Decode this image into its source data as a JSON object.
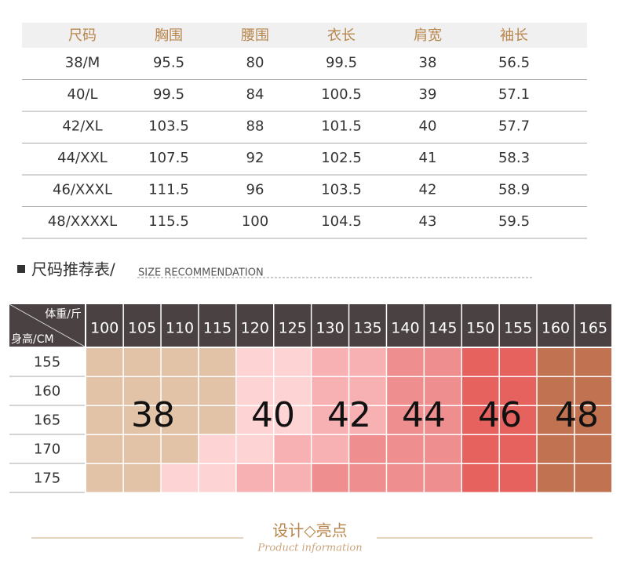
{
  "size_table": {
    "header": [
      "尺码",
      "胸围",
      "腰围",
      "衣长",
      "肩宽",
      "袖长"
    ],
    "rows": [
      [
        "38/M",
        "95.5",
        "80",
        "99.5",
        "38",
        "56.5"
      ],
      [
        "40/L",
        "99.5",
        "84",
        "100.5",
        "39",
        "57.1"
      ],
      [
        "42/XL",
        "103.5",
        "88",
        "101.5",
        "40",
        "57.7"
      ],
      [
        "44/XXL",
        "107.5",
        "92",
        "102.5",
        "41",
        "58.3"
      ],
      [
        "46/XXXL",
        "111.5",
        "96",
        "103.5",
        "42",
        "58.9"
      ],
      [
        "48/XXXXL",
        "115.5",
        "100",
        "104.5",
        "43",
        "59.5"
      ]
    ]
  },
  "recommendation": {
    "title": "尺码推荐表/",
    "subtitle": "SIZE RECOMMENDATION",
    "weight_label": "体重/斤",
    "height_label": "身高/CM",
    "weights": [
      "100",
      "105",
      "110",
      "115",
      "120",
      "125",
      "130",
      "135",
      "140",
      "145",
      "150",
      "155",
      "160",
      "165"
    ],
    "zones": [
      {
        "label": "38",
        "color": "#e3c3a8"
      },
      {
        "label": "40",
        "color": "#fdd3d4"
      },
      {
        "label": "42",
        "color": "#f8b1b3"
      },
      {
        "label": "44",
        "color": "#ee8e8e"
      },
      {
        "label": "46",
        "color": "#e5625f"
      },
      {
        "label": "48",
        "color": "#c07251"
      }
    ],
    "rows": [
      {
        "height": "155",
        "cells": [
          "38",
          "38",
          "38",
          "38",
          "40",
          "40",
          "42",
          "42",
          "44",
          "44",
          "46",
          "46",
          "48",
          "48"
        ]
      },
      {
        "height": "160",
        "cells": [
          "38",
          "38",
          "38",
          "38",
          "40",
          "40",
          "42",
          "42",
          "44",
          "44",
          "46",
          "46",
          "48",
          "48"
        ]
      },
      {
        "height": "165",
        "cells": [
          "38",
          "38",
          "38",
          "38",
          "40",
          "40",
          "42",
          "42",
          "44",
          "44",
          "46",
          "46",
          "48",
          "48"
        ]
      },
      {
        "height": "170",
        "cells": [
          "38",
          "38",
          "38",
          "40",
          "40",
          "42",
          "42",
          "44",
          "44",
          "44",
          "46",
          "46",
          "48",
          "48"
        ]
      },
      {
        "height": "175",
        "cells": [
          "38",
          "38",
          "40",
          "40",
          "42",
          "42",
          "44",
          "44",
          "44",
          "44",
          "46",
          "46",
          "48",
          "48"
        ]
      }
    ]
  },
  "footer": {
    "title": "设计◇亮点",
    "subtitle": "Product information"
  }
}
